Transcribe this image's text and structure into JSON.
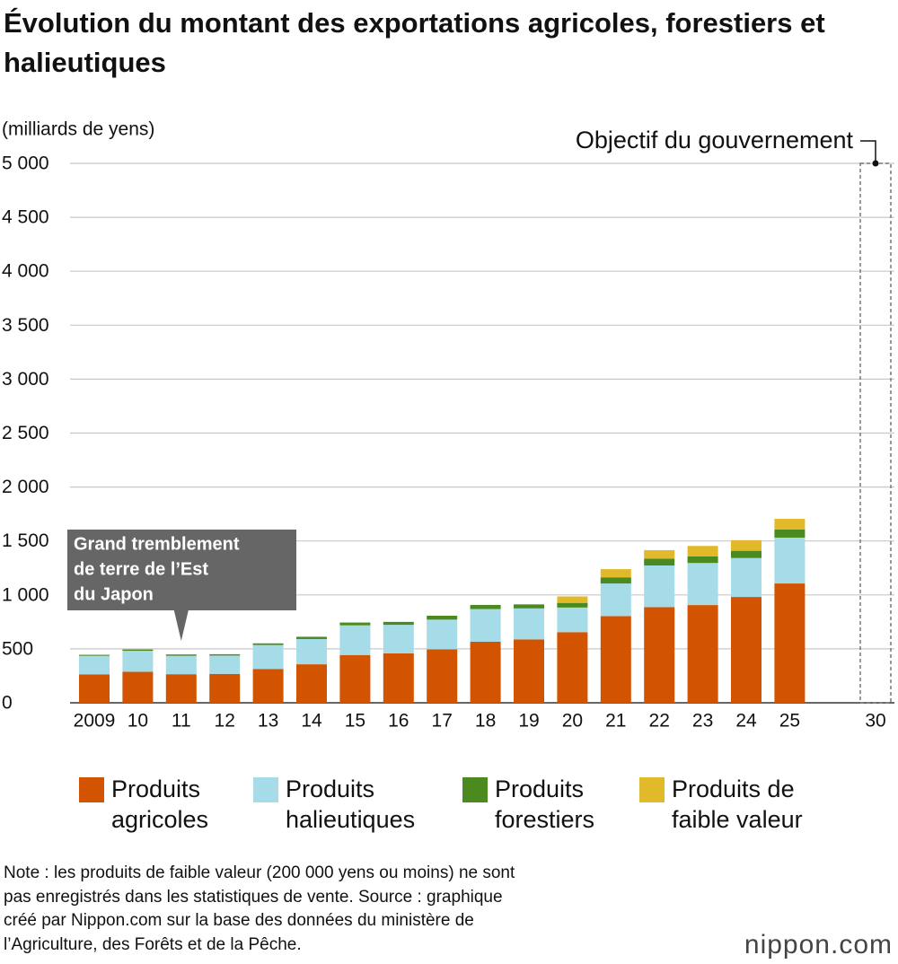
{
  "chart_data": {
    "type": "stacked-bar",
    "title": "Évolution du montant des exportations agricoles, forestiers et halieutiques",
    "y_label": "(milliards de yens)",
    "categories": [
      "2009",
      "10",
      "11",
      "12",
      "13",
      "14",
      "15",
      "16",
      "17",
      "18",
      "19",
      "20",
      "21",
      "22",
      "23",
      "24",
      "25",
      "30"
    ],
    "series": [
      {
        "name": "Produits agricoles",
        "color": "#d35400",
        "values": [
          264,
          287,
          265,
          268,
          314,
          357,
          443,
          459,
          496,
          566,
          588,
          655,
          804,
          886,
          906,
          981,
          1106,
          null
        ]
      },
      {
        "name": "Produits halieutiques",
        "color": "#a6dbe8",
        "values": [
          172,
          195,
          171,
          170,
          222,
          234,
          275,
          264,
          275,
          303,
          287,
          228,
          302,
          387,
          390,
          361,
          425,
          null
        ]
      },
      {
        "name": "Produits forestiers",
        "color": "#4b8a1e",
        "values": [
          9,
          12,
          12,
          12,
          15,
          21,
          26,
          27,
          36,
          38,
          37,
          43,
          57,
          64,
          62,
          67,
          75,
          null
        ]
      },
      {
        "name": "Produits de faible valeur",
        "color": "#e2b92a",
        "values": [
          null,
          null,
          null,
          null,
          null,
          null,
          null,
          null,
          null,
          null,
          null,
          60,
          76,
          78,
          96,
          98,
          99,
          null
        ]
      }
    ],
    "ylim": [
      0,
      5000
    ],
    "yticks": [
      0,
      500,
      {
        "value": 1000,
        "label": "1 000"
      },
      {
        "value": 1500,
        "label": "1 500"
      },
      {
        "value": 2000,
        "label": "2 000"
      },
      {
        "value": 2500,
        "label": "2 500"
      },
      {
        "value": 3000,
        "label": "3 000"
      },
      {
        "value": 3500,
        "label": "3 500"
      },
      {
        "value": 4000,
        "label": "4 000"
      },
      {
        "value": 4500,
        "label": "4 500"
      },
      {
        "value": 5000,
        "label": "5 000"
      }
    ],
    "grid": true,
    "target": {
      "text": "Objectif du gouvernement",
      "value": 5000
    },
    "annotation": {
      "lines": [
        "Grand tremblement",
        "de terre de l’Est",
        "du Japon"
      ],
      "category_index": 2
    },
    "note": [
      "Note : les produits de faible valeur (200 000 yens ou moins) ne sont",
      "pas enregistrés dans les statistiques de vente. Source : graphique",
      "créé par Nippon.com sur la base des données du ministère de",
      "l’Agriculture, des Forêts et de la Pêche."
    ],
    "logo": "nippon.com"
  }
}
